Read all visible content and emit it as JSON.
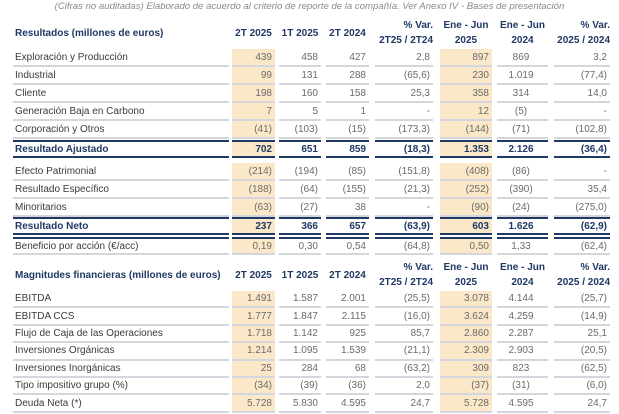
{
  "subtitle": "(Cifras no auditadas)  Elaborado de acuerdo al criterio de reporte de la compañía. Ver Anexo IV - Bases de presentación",
  "colors": {
    "highlight": "#fbe8c8",
    "header_text": "#1f3864"
  },
  "columns": [
    "2T 2025",
    "1T 2025",
    "2T 2024",
    "% Var.\n2T25 / 2T24",
    "Ene - Jun\n2025",
    "Ene - Jun\n2024",
    "% Var.\n2025 / 2024"
  ],
  "sections": [
    {
      "title": "Resultados (millones de euros)",
      "rows": [
        {
          "label": "Exploración y Producción",
          "values": [
            "439",
            "458",
            "427",
            "2,8",
            "897",
            "869",
            "3,2"
          ]
        },
        {
          "label": "Industrial",
          "values": [
            "99",
            "131",
            "288",
            "(65,6)",
            "230",
            "1.019",
            "(77,4)"
          ]
        },
        {
          "label": "Cliente",
          "values": [
            "198",
            "160",
            "158",
            "25,3",
            "358",
            "314",
            "14,0"
          ]
        },
        {
          "label": "Generación Baja en Carbono",
          "values": [
            "7",
            "5",
            "1",
            "-",
            "12",
            "(5)",
            "-"
          ]
        },
        {
          "label": "Corporación y Otros",
          "values": [
            "(41)",
            "(103)",
            "(15)",
            "(173,3)",
            "(144)",
            "(71)",
            "(102,8)"
          ]
        },
        {
          "label": "Resultado Ajustado",
          "bold": true,
          "values": [
            "702",
            "651",
            "859",
            "(18,3)",
            "1.353",
            "2.126",
            "(36,4)"
          ]
        },
        {
          "label": "Efecto Patrimonial",
          "values": [
            "(214)",
            "(194)",
            "(85)",
            "(151,8)",
            "(408)",
            "(86)",
            "-"
          ]
        },
        {
          "label": "Resultado Específico",
          "values": [
            "(188)",
            "(64)",
            "(155)",
            "(21,3)",
            "(252)",
            "(390)",
            "35,4"
          ]
        },
        {
          "label": "Minoritarios",
          "values": [
            "(63)",
            "(27)",
            "38",
            "-",
            "(90)",
            "(24)",
            "(275,0)"
          ]
        },
        {
          "label": "Resultado Neto",
          "bold": true,
          "values": [
            "237",
            "366",
            "657",
            "(63,9)",
            "603",
            "1.626",
            "(62,9)"
          ]
        },
        {
          "label": "Beneficio por acción (€/acc)",
          "values": [
            "0,19",
            "0,30",
            "0,54",
            "(64,8)",
            "0,50",
            "1,33",
            "(62,4)"
          ]
        }
      ]
    },
    {
      "title": "Magnitudes financieras (millones de euros)",
      "rows": [
        {
          "label": "EBITDA",
          "values": [
            "1.491",
            "1.587",
            "2.001",
            "(25,5)",
            "3.078",
            "4.144",
            "(25,7)"
          ]
        },
        {
          "label": "EBITDA CCS",
          "values": [
            "1.777",
            "1.847",
            "2.115",
            "(16,0)",
            "3.624",
            "4.259",
            "(14,9)"
          ]
        },
        {
          "label": "Flujo de Caja de las Operaciones",
          "values": [
            "1.718",
            "1.142",
            "925",
            "85,7",
            "2.860",
            "2.287",
            "25,1"
          ]
        },
        {
          "label": "Inversiones Orgánicas",
          "values": [
            "1.214",
            "1.095",
            "1.539",
            "(21,1)",
            "2.309",
            "2.903",
            "(20,5)"
          ]
        },
        {
          "label": "Inversiones Inorgánicas",
          "values": [
            "25",
            "284",
            "68",
            "(63,2)",
            "309",
            "823",
            "(62,5)"
          ]
        },
        {
          "label": "Tipo impositivo grupo (%)",
          "values": [
            "(34)",
            "(39)",
            "(36)",
            "2,0",
            "(37)",
            "(31)",
            "(6,0)"
          ]
        },
        {
          "label": "Deuda Neta (*)",
          "values": [
            "5.728",
            "5.830",
            "4.595",
            "24,7",
            "5.728",
            "4.595",
            "24,7"
          ]
        }
      ]
    }
  ]
}
